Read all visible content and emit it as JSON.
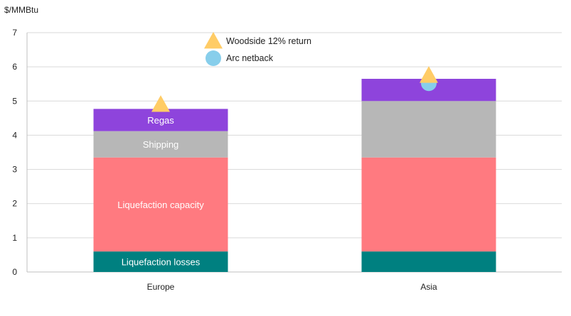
{
  "chart_data": {
    "type": "bar",
    "stacked": true,
    "y_unit_label": "$/MMBtu",
    "ylim": [
      0,
      7
    ],
    "y_ticks": [
      0,
      1,
      2,
      3,
      4,
      5,
      6,
      7
    ],
    "grid": "horizontal",
    "legend_placement": "top-center",
    "categories": [
      "Europe",
      "Asia"
    ],
    "series": [
      {
        "name": "Liquefaction losses",
        "color": "#008080",
        "values": [
          0.6,
          0.6
        ],
        "label_shown": [
          true,
          false
        ]
      },
      {
        "name": "Liquefaction capacity",
        "color": "#ff7a80",
        "values": [
          2.75,
          2.75
        ],
        "label_shown": [
          true,
          false
        ]
      },
      {
        "name": "Shipping",
        "color": "#b7b7b7",
        "values": [
          0.77,
          1.65
        ],
        "label_shown": [
          true,
          false
        ]
      },
      {
        "name": "Regas",
        "color": "#8e44dc",
        "values": [
          0.65,
          0.65
        ],
        "label_shown": [
          true,
          false
        ]
      }
    ],
    "markers": [
      {
        "name": "Woodside 12% return",
        "shape": "triangle",
        "color": "#ffcc66",
        "values": [
          4.9,
          5.75
        ]
      },
      {
        "name": "Arc netback",
        "shape": "circle",
        "color": "#87ceeb",
        "values": [
          null,
          5.52
        ]
      }
    ]
  }
}
